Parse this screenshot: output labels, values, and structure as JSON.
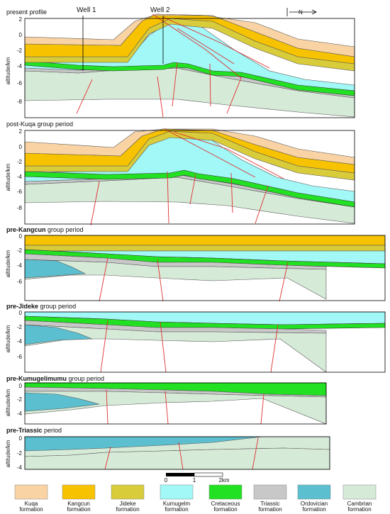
{
  "panels": [
    {
      "id": "present",
      "title_prefix": "",
      "title_bold": "",
      "title_suffix": "present profile",
      "ylabel": "altitude/km",
      "ticks": [
        "2",
        "0",
        "-2",
        "-4",
        "-6",
        "-8"
      ]
    },
    {
      "id": "post-kuqa",
      "title_prefix": "",
      "title_bold": "",
      "title_suffix": "post-Kuqa group period",
      "ylabel": "altitude/km",
      "ticks": [
        "2",
        "0",
        "-2",
        "-4",
        "-6",
        "-8"
      ]
    },
    {
      "id": "pre-kangcun",
      "title_prefix": "",
      "title_bold": "pre-Kangcun",
      "title_suffix": " group period",
      "ylabel": "altitude/km",
      "ticks": [
        "0",
        "-2",
        "-4",
        "-6"
      ]
    },
    {
      "id": "pre-jideke",
      "title_prefix": "",
      "title_bold": "pre-Jideke",
      "title_suffix": " group period",
      "ylabel": "altitude/km",
      "ticks": [
        "0",
        "-2",
        "-4",
        "-6"
      ]
    },
    {
      "id": "pre-kumugelimumu",
      "title_prefix": "",
      "title_bold": "pre-Kumugelimumu",
      "title_suffix": " group period",
      "ylabel": "altitude/km",
      "ticks": [
        "0",
        "-2",
        "-4"
      ]
    },
    {
      "id": "pre-triassic",
      "title_prefix": "",
      "title_bold": "pre-Triassic",
      "title_suffix": " period",
      "ylabel": "altitude/km",
      "ticks": [
        "0",
        "-2",
        "-4"
      ]
    }
  ],
  "wells": [
    "Well 1",
    "Well 2"
  ],
  "north_label": "N",
  "scale_bar": {
    "labels": [
      "0",
      "1",
      "2km"
    ]
  },
  "legend": [
    {
      "line1": "Kuqa",
      "line2": "formation",
      "color": "#f9d3a4"
    },
    {
      "line1": "Kangcun",
      "line2": "formation",
      "color": "#f7c300"
    },
    {
      "line1": "Jideke",
      "line2": "formation",
      "color": "#d9cc3a"
    },
    {
      "line1": "Kumugelm",
      "line2": "formation",
      "color": "#a2f7f7"
    },
    {
      "line1": "Cretaceous",
      "line2": "formation",
      "color": "#22e022"
    },
    {
      "line1": "Triassic",
      "line2": "formation",
      "color": "#c8c8c8"
    },
    {
      "line1": "Ordovician",
      "line2": "formation",
      "color": "#5bbfcf"
    },
    {
      "line1": "Cambrian",
      "line2": "formation",
      "color": "#d6ead8"
    }
  ]
}
